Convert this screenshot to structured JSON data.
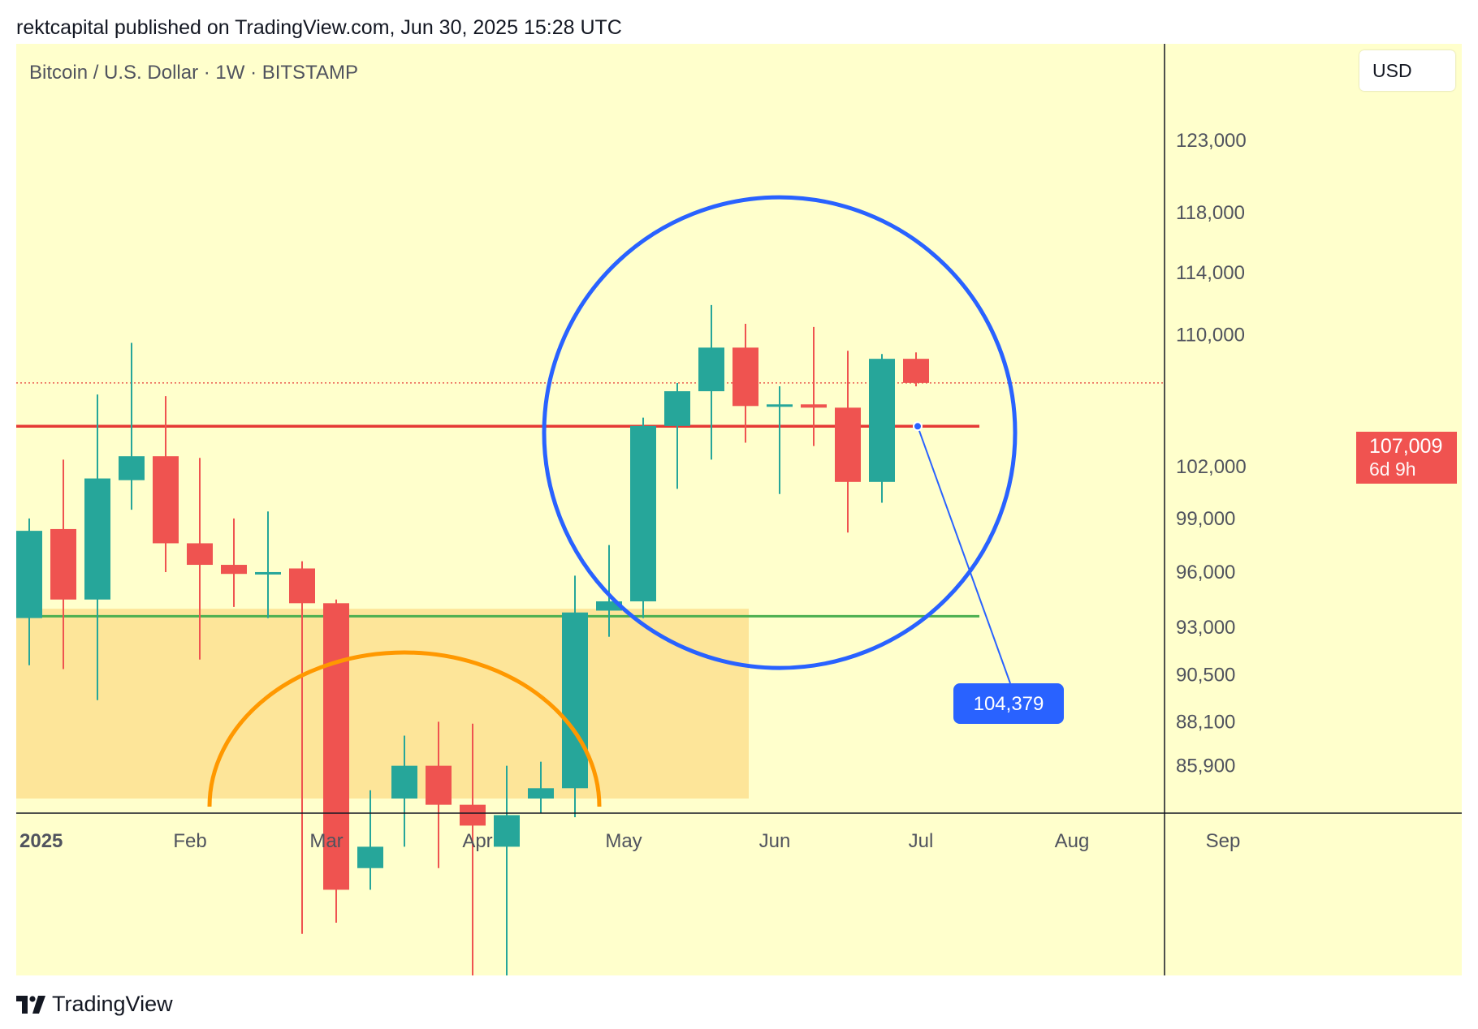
{
  "header": {
    "publish_text": "rektcapital published on TradingView.com, Jun 30, 2025 15:28 UTC"
  },
  "chart": {
    "title": "Bitcoin / U.S. Dollar · 1W · BITSTAMP",
    "currency": "USD",
    "last_price_label": "107,009",
    "countdown": "6d 9h",
    "annotation_label": "104,379"
  },
  "footer": {
    "logo_icon": "tradingview-logo-icon",
    "brand": "TradingView"
  },
  "colors": {
    "background": "#ffffcc",
    "zone": "#fde08f",
    "bull": "#26a69a",
    "bear": "#ef5350",
    "resistance": "#e53935",
    "support": "#4caf50",
    "circle": "#2962ff",
    "arc": "#ff9800",
    "label_bg": "#2962ff"
  },
  "chart_data": {
    "type": "candlestick",
    "title": "Bitcoin / U.S. Dollar · 1W · BITSTAMP",
    "x_axis_labels": [
      "2025",
      "Feb",
      "Mar",
      "Apr",
      "May",
      "Jun",
      "Jul",
      "Aug",
      "Sep"
    ],
    "y_axis_ticks": [
      123000,
      118000,
      114000,
      110000,
      102000,
      99000,
      96000,
      93000,
      90500,
      88100,
      85900
    ],
    "y_scale": "log",
    "y_range": [
      84300,
      130000
    ],
    "candles": [
      {
        "week": "2024-12-30",
        "open": 93500,
        "high": 99000,
        "low": 91000,
        "close": 98300
      },
      {
        "week": "2025-01-06",
        "open": 98400,
        "high": 102400,
        "low": 90800,
        "close": 94500
      },
      {
        "week": "2025-01-13",
        "open": 94500,
        "high": 106300,
        "low": 89200,
        "close": 101300
      },
      {
        "week": "2025-01-20",
        "open": 101200,
        "high": 109500,
        "low": 99500,
        "close": 102600
      },
      {
        "week": "2025-01-27",
        "open": 102600,
        "high": 106200,
        "low": 96000,
        "close": 97600
      },
      {
        "week": "2025-02-03",
        "open": 97600,
        "high": 102500,
        "low": 91300,
        "close": 96400
      },
      {
        "week": "2025-02-10",
        "open": 96400,
        "high": 99000,
        "low": 94100,
        "close": 95900
      },
      {
        "week": "2025-02-17",
        "open": 95900,
        "high": 99400,
        "low": 93500,
        "close": 96000
      },
      {
        "week": "2025-02-24",
        "open": 96200,
        "high": 96600,
        "low": 78000,
        "close": 94300
      },
      {
        "week": "2025-03-03",
        "open": 94300,
        "high": 94500,
        "low": 78500,
        "close": 80000
      },
      {
        "week": "2025-03-10",
        "open": 81000,
        "high": 84700,
        "low": 80000,
        "close": 82000
      },
      {
        "week": "2025-03-17",
        "open": 84300,
        "high": 87400,
        "low": 82000,
        "close": 85900
      },
      {
        "week": "2025-03-24",
        "open": 85900,
        "high": 88100,
        "low": 81000,
        "close": 84000
      },
      {
        "week": "2025-03-31",
        "open": 84000,
        "high": 88000,
        "low": 76000,
        "close": 83000
      },
      {
        "week": "2025-04-07",
        "open": 82000,
        "high": 85900,
        "low": 74500,
        "close": 83500
      },
      {
        "week": "2025-04-14",
        "open": 84300,
        "high": 86100,
        "low": 83600,
        "close": 84800
      },
      {
        "week": "2025-04-21",
        "open": 84800,
        "high": 95800,
        "low": 83400,
        "close": 93800
      },
      {
        "week": "2025-04-28",
        "open": 93900,
        "high": 97500,
        "low": 92500,
        "close": 94400
      },
      {
        "week": "2025-05-05",
        "open": 94400,
        "high": 104900,
        "low": 93500,
        "close": 104400
      },
      {
        "week": "2025-05-12",
        "open": 104400,
        "high": 107000,
        "low": 100700,
        "close": 106500
      },
      {
        "week": "2025-05-19",
        "open": 106500,
        "high": 111900,
        "low": 102400,
        "close": 109200
      },
      {
        "week": "2025-05-26",
        "open": 109200,
        "high": 110700,
        "low": 103400,
        "close": 105600
      },
      {
        "week": "2025-06-02",
        "open": 105600,
        "high": 106800,
        "low": 100400,
        "close": 105700
      },
      {
        "week": "2025-06-09",
        "open": 105700,
        "high": 110500,
        "low": 103200,
        "close": 105500
      },
      {
        "week": "2025-06-16",
        "open": 105500,
        "high": 109000,
        "low": 98200,
        "close": 101100
      },
      {
        "week": "2025-06-23",
        "open": 101100,
        "high": 108800,
        "low": 99900,
        "close": 108500
      },
      {
        "week": "2025-06-30",
        "open": 108500,
        "high": 108900,
        "low": 106800,
        "close": 107009
      }
    ],
    "last_price": 107009,
    "horizontal_lines": [
      {
        "price": 104379,
        "color": "red",
        "role": "resistance"
      },
      {
        "price": 93600,
        "color": "green",
        "role": "support"
      }
    ],
    "annotations": {
      "price_label": 104379,
      "circle": "blue circle around May–Jun 2025 candles",
      "arc": "orange arc over Mar–Apr 2025 candles",
      "zone": "shaded orange zone below ~94,000 from Jan to late May 2025"
    }
  }
}
